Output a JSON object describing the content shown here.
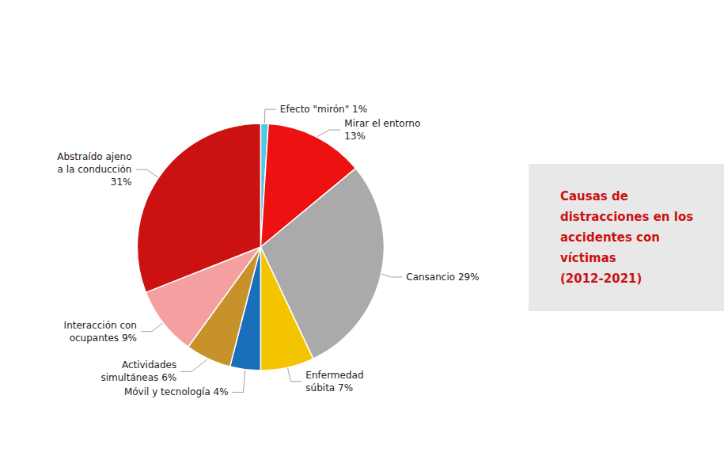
{
  "chart_data": {
    "type": "pie",
    "title": "Causas de\ndistracciones en los\naccidentes con\nvíctimas\n(2012-2021)",
    "categories": [
      "Efecto \"mirón\" 1%",
      "Mirar el entorno\n13%",
      "Cansancio 29%",
      "Enfermedad\nsúbita 7%",
      "Móvil y tecnología 4%",
      "Actividades\nsimultáneas 6%",
      "Interacción con\nocupantes 9%",
      "Abstraído ajeno\na la conducción\n31%"
    ],
    "values": [
      1,
      13,
      29,
      7,
      4,
      6,
      9,
      31
    ],
    "colors": [
      "#4dc8e8",
      "#ee1111",
      "#aaaaaa",
      "#f5c400",
      "#1a6fbb",
      "#c8922a",
      "#f4a0a0",
      "#cc1111"
    ],
    "data_labels": true
  }
}
